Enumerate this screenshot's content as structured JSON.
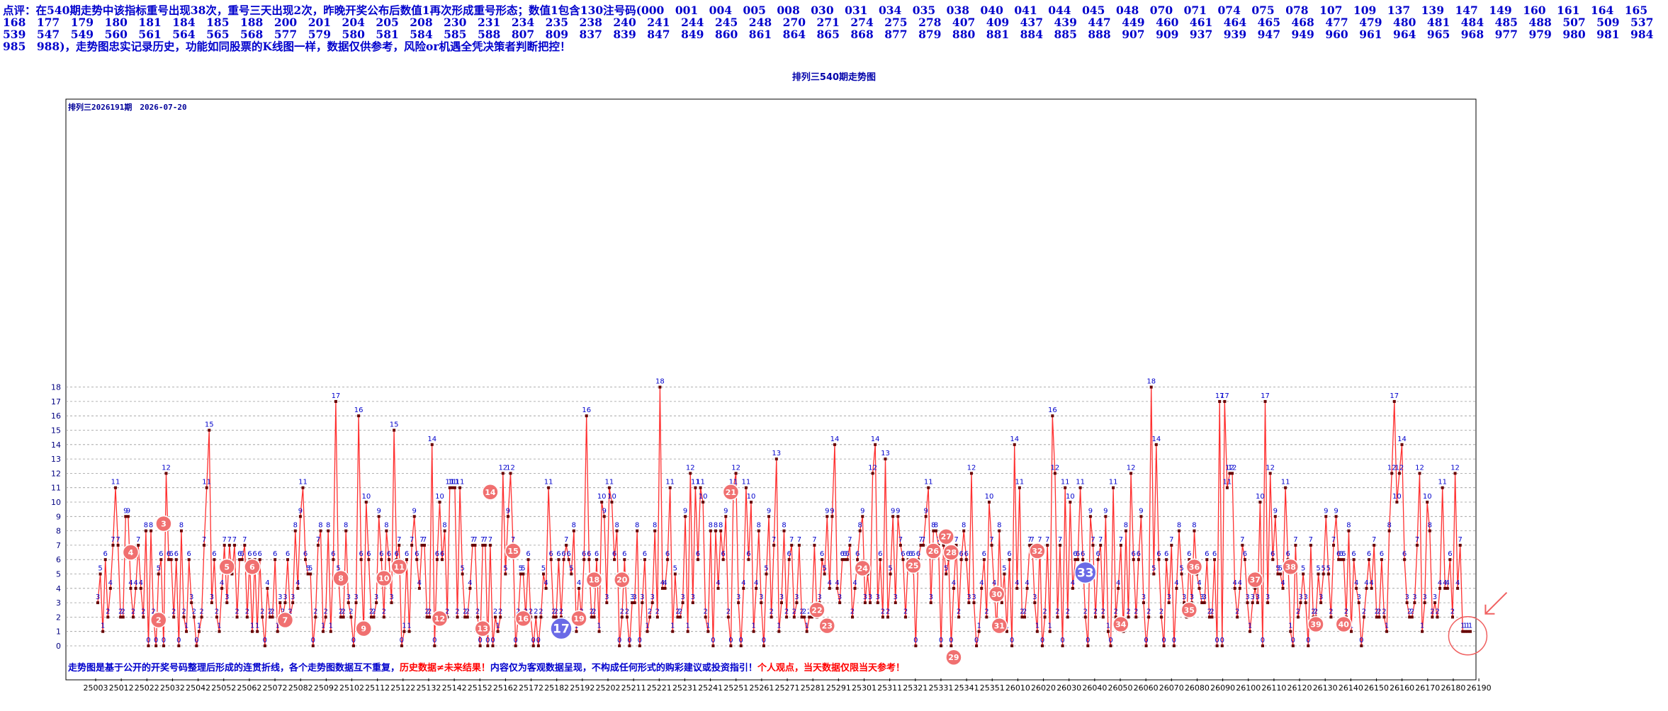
{
  "header": {
    "comment": "点评：在540期走势中该指标重号出现38次，重号三天出现2次，昨晚开奖公布后数值1再次形成重号形态；数值1包含130注号码(000　001　004　005　008　030　031　034　035　038　040　041　044　045　048　070　071　074　075　078　107　109　137　139　147　149　160　161　164　165　168　177　179　180　181　184　185　188　200　201　204　205　208　230　231　234　235　238　240　241　244　245　248　270　271　274　275　278　407　409　437　439　447　449　460　461　464　465　468　477　479　480　481　484　485　488　507　509　537　539　547　549　560　561　564　565　568　577　579　580　581　584　585　588　807　809　837　839　847　849　860　861　864　865　868　877　879　880　881　884　885　888　907　909　937　939　947　949　960　961　964　965　968　977　979　980　981　984　985　988)，走势图忠实记录历史，功能如同股票的K线图一样，数据仅供参考，风险or机遇全凭决策者判断把控！"
  },
  "chart_title": "排列三540期走势图",
  "issue_label": "排列三2026191期　2026-07-20",
  "footer": {
    "part1": "走势图是基于公开的开奖号码整理后形成的连贯折线，各个走势图数据互不重复，",
    "part2": "历史数据≠未来结果！",
    "part3": "内容仅为客观数据呈现，不构成任何形式的购彩建议或投资指引！",
    "part4": "个人观点，当天数据仅限当天参考！"
  },
  "colors": {
    "line": "#ff3030",
    "point": "#660000",
    "value_label": "#0000cc",
    "badge_red": "#f07070",
    "badge_blue": "#6a6ae6",
    "grid": "#999999",
    "frame": "#000000"
  },
  "chart_data": {
    "type": "line",
    "title": "排列三540期走势图",
    "ylim": [
      0,
      18
    ],
    "y_ticks": [
      "0",
      "1",
      "2",
      "3",
      "4",
      "5",
      "6",
      "7",
      "8",
      "9",
      "10",
      "11",
      "12",
      "13",
      "14",
      "15",
      "16",
      "17",
      "18"
    ],
    "x_tick_labels": [
      "25003",
      "25012",
      "25022",
      "25032",
      "25042",
      "25052",
      "25062",
      "25072",
      "25082",
      "25092",
      "25102",
      "25112",
      "25122",
      "25132",
      "25142",
      "25152",
      "25162",
      "25172",
      "25182",
      "25192",
      "25202",
      "25211",
      "25221",
      "25231",
      "25241",
      "25251",
      "25261",
      "25271",
      "25281",
      "25291",
      "25301",
      "25311",
      "25321",
      "25331",
      "25341",
      "25351",
      "26010",
      "26020",
      "26030",
      "26040",
      "26050",
      "26060",
      "26070",
      "26080",
      "26090",
      "26100",
      "26110",
      "26120",
      "26130",
      "26140",
      "26150",
      "26160",
      "26170",
      "26180",
      "26190"
    ],
    "grid": true,
    "series": [
      {
        "values": [
          3,
          5,
          1,
          6,
          2,
          4,
          7,
          11,
          7,
          2,
          2,
          9,
          9,
          4,
          2,
          4,
          7,
          4,
          2,
          8,
          0,
          8,
          2,
          0,
          5,
          6,
          0,
          12,
          6,
          6,
          2,
          6,
          0,
          8,
          2,
          1,
          6,
          3,
          2,
          0,
          1,
          2,
          7,
          11,
          15,
          3,
          6,
          2,
          1,
          4,
          7,
          3,
          7,
          5,
          7,
          2,
          6,
          6,
          7,
          2,
          6,
          1,
          6,
          1,
          6,
          2,
          0,
          4,
          2,
          2,
          6,
          1,
          3,
          2,
          3,
          6,
          2,
          3,
          8,
          4,
          9,
          11,
          6,
          5,
          5,
          0,
          2,
          7,
          8,
          1,
          2,
          8,
          1,
          6,
          17,
          5,
          2,
          2,
          8,
          3,
          2,
          0,
          3,
          16,
          6,
          1,
          10,
          6,
          2,
          2,
          3,
          9,
          6,
          2,
          8,
          6,
          3,
          15,
          6,
          7,
          0,
          1,
          6,
          1,
          7,
          9,
          6,
          4,
          7,
          7,
          2,
          2,
          14,
          0,
          6,
          10,
          6,
          8,
          2,
          11,
          11,
          11,
          2,
          11,
          5,
          2,
          2,
          4,
          7,
          7,
          2,
          0,
          7,
          7,
          0,
          7,
          0,
          2,
          1,
          2,
          12,
          5,
          9,
          12,
          7,
          0,
          2,
          5,
          5,
          2,
          6,
          2,
          0,
          2,
          0,
          2,
          5,
          4,
          11,
          6,
          2,
          2,
          6,
          2,
          6,
          7,
          6,
          5,
          8,
          1,
          4,
          2,
          6,
          16,
          6,
          2,
          2,
          6,
          1,
          10,
          9,
          3,
          11,
          10,
          6,
          8,
          0,
          2,
          6,
          2,
          0,
          3,
          3,
          8,
          0,
          3,
          6,
          1,
          2,
          3,
          8,
          2,
          18,
          4,
          4,
          6,
          11,
          1,
          5,
          2,
          2,
          3,
          9,
          1,
          12,
          3,
          11,
          6,
          11,
          10,
          2,
          1,
          8,
          0,
          8,
          4,
          8,
          6,
          9,
          2,
          0,
          11,
          12,
          3,
          0,
          4,
          11,
          6,
          10,
          1,
          4,
          8,
          3,
          0,
          5,
          9,
          2,
          7,
          13,
          1,
          3,
          8,
          2,
          6,
          7,
          2,
          3,
          7,
          2,
          2,
          1,
          2,
          2,
          7,
          2,
          3,
          6,
          5,
          9,
          4,
          9,
          14,
          4,
          3,
          6,
          6,
          6,
          7,
          2,
          4,
          6,
          8,
          9,
          3,
          5,
          3,
          12,
          14,
          3,
          6,
          2,
          13,
          2,
          5,
          9,
          3,
          9,
          7,
          6,
          2,
          6,
          6,
          6,
          0,
          6,
          7,
          7,
          9,
          11,
          3,
          8,
          8,
          7,
          0,
          7,
          5,
          6,
          0,
          4,
          7,
          2,
          6,
          8,
          6,
          3,
          12,
          3,
          0,
          1,
          4,
          6,
          2,
          10,
          7,
          4,
          1,
          8,
          3,
          5,
          1,
          6,
          0,
          14,
          4,
          11,
          2,
          2,
          4,
          7,
          7,
          3,
          1,
          7,
          0,
          2,
          7,
          1,
          16,
          12,
          2,
          7,
          0,
          11,
          2,
          10,
          4,
          6,
          6,
          11,
          6,
          2,
          0,
          9,
          7,
          2,
          6,
          7,
          2,
          9,
          1,
          0,
          11,
          2,
          4,
          7,
          1,
          8,
          2,
          12,
          6,
          2,
          6,
          9,
          3,
          0,
          2,
          18,
          5,
          14,
          6,
          2,
          0,
          6,
          3,
          7,
          0,
          4,
          8,
          5,
          3,
          2,
          6,
          3,
          8,
          5,
          4,
          3,
          3,
          6,
          2,
          2,
          6,
          0,
          17,
          0,
          17,
          11,
          12,
          12,
          4,
          2,
          4,
          7,
          6,
          3,
          1,
          3,
          4,
          3,
          10,
          0,
          17,
          3,
          12,
          6,
          9,
          5,
          5,
          4,
          11,
          6,
          1,
          0,
          7,
          2,
          3,
          5,
          3,
          0,
          7,
          2,
          2,
          5,
          3,
          5,
          9,
          5,
          2,
          7,
          9,
          6,
          6,
          6,
          2,
          8,
          1,
          6,
          4,
          3,
          0,
          2,
          4,
          6,
          4,
          7,
          2,
          2,
          6,
          2,
          1,
          8,
          12,
          17,
          10,
          12,
          14,
          6,
          3,
          2,
          2,
          3,
          7,
          12,
          1,
          3,
          10,
          8,
          2,
          3,
          2,
          4,
          11,
          4,
          4,
          6,
          2,
          12,
          4,
          7,
          1,
          1,
          1,
          1
        ]
      }
    ],
    "badges": [
      {
        "label": "2",
        "color": "red",
        "x": 24,
        "y": 1.8
      },
      {
        "label": "3",
        "color": "red",
        "x": 26,
        "y": 8.5
      },
      {
        "label": "4",
        "color": "red",
        "x": 13,
        "y": 6.5
      },
      {
        "label": "5",
        "color": "red",
        "x": 51,
        "y": 5.5
      },
      {
        "label": "6",
        "color": "red",
        "x": 61,
        "y": 5.5
      },
      {
        "label": "7",
        "color": "red",
        "x": 74,
        "y": 1.8
      },
      {
        "label": "8",
        "color": "red",
        "x": 96,
        "y": 4.7
      },
      {
        "label": "9",
        "color": "red",
        "x": 105,
        "y": 1.2
      },
      {
        "label": "10",
        "color": "red",
        "x": 113,
        "y": 4.7
      },
      {
        "label": "11",
        "color": "red",
        "x": 119,
        "y": 5.5
      },
      {
        "label": "12",
        "color": "red",
        "x": 135,
        "y": 1.9
      },
      {
        "label": "13",
        "color": "red",
        "x": 152,
        "y": 1.2
      },
      {
        "label": "14",
        "color": "red",
        "x": 155,
        "y": 10.7
      },
      {
        "label": "15",
        "color": "red",
        "x": 164,
        "y": 6.6
      },
      {
        "label": "16",
        "color": "red",
        "x": 168,
        "y": 1.9
      },
      {
        "label": "17",
        "color": "blue",
        "x": 183,
        "y": 1.2
      },
      {
        "label": "18",
        "color": "red",
        "x": 196,
        "y": 4.6
      },
      {
        "label": "19",
        "color": "red",
        "x": 190,
        "y": 1.9
      },
      {
        "label": "20",
        "color": "red",
        "x": 207,
        "y": 4.6
      },
      {
        "label": "21",
        "color": "red",
        "x": 250,
        "y": 10.7
      },
      {
        "label": "22",
        "color": "red",
        "x": 284,
        "y": 2.5
      },
      {
        "label": "23",
        "color": "red",
        "x": 288,
        "y": 1.4
      },
      {
        "label": "24",
        "color": "red",
        "x": 302,
        "y": 5.4
      },
      {
        "label": "25",
        "color": "red",
        "x": 322,
        "y": 5.6
      },
      {
        "label": "26",
        "color": "red",
        "x": 330,
        "y": 6.6
      },
      {
        "label": "27",
        "color": "red",
        "x": 335,
        "y": 7.6
      },
      {
        "label": "28",
        "color": "red",
        "x": 337,
        "y": 6.5
      },
      {
        "label": "29",
        "color": "red",
        "x": 338,
        "y": -0.8
      },
      {
        "label": "30",
        "color": "red",
        "x": 355,
        "y": 3.6
      },
      {
        "label": "31",
        "color": "red",
        "x": 356,
        "y": 1.4
      },
      {
        "label": "32",
        "color": "red",
        "x": 371,
        "y": 6.6
      },
      {
        "label": "33",
        "color": "blue",
        "x": 390,
        "y": 5.1
      },
      {
        "label": "34",
        "color": "red",
        "x": 404,
        "y": 1.5
      },
      {
        "label": "35",
        "color": "red",
        "x": 431,
        "y": 2.5
      },
      {
        "label": "36",
        "color": "red",
        "x": 433,
        "y": 5.5
      },
      {
        "label": "37",
        "color": "red",
        "x": 457,
        "y": 4.6
      },
      {
        "label": "38",
        "color": "red",
        "x": 471,
        "y": 5.5
      },
      {
        "label": "39",
        "color": "red",
        "x": 481,
        "y": 1.5
      },
      {
        "label": "40",
        "color": "red",
        "x": 492,
        "y": 1.5
      }
    ],
    "highlight_last_point": true
  }
}
